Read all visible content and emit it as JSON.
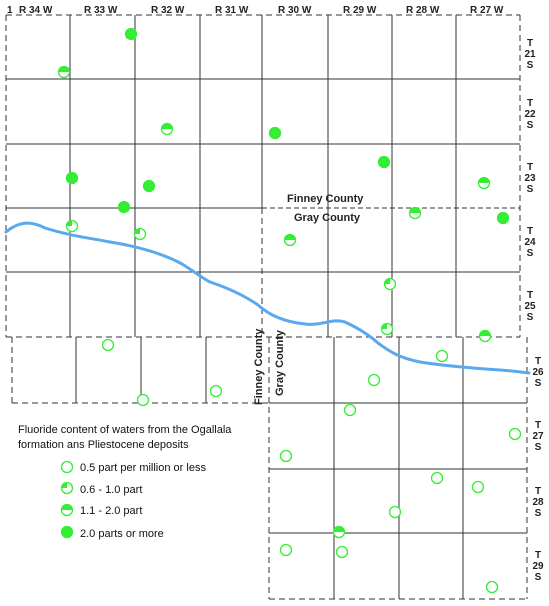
{
  "map": {
    "corner_number": "1",
    "range_labels": [
      "R 34 W",
      "R 33 W",
      "R 32 W",
      "R 31 W",
      "R 30 W",
      "R 29 W",
      "R 28 W",
      "R 27 W"
    ],
    "township_labels": [
      [
        "T",
        "21",
        "S"
      ],
      [
        "T",
        "22",
        "S"
      ],
      [
        "T",
        "23",
        "S"
      ],
      [
        "T",
        "24",
        "S"
      ],
      [
        "T",
        "25",
        "S"
      ],
      [
        "T",
        "26",
        "S"
      ],
      [
        "T",
        "27",
        "S"
      ],
      [
        "T",
        "28",
        "S"
      ],
      [
        "T",
        "29",
        "S"
      ]
    ],
    "county_labels": {
      "finney_horizontal": "Finney County",
      "gray_horizontal": "Gray County",
      "finney_vertical": "Finney County",
      "gray_vertical": "Gray County"
    },
    "colors": {
      "fill": "#33ee33",
      "river": "#5aa9ee",
      "line": "#333333"
    },
    "legend": {
      "title_line1": "Fluoride content of waters from the Ogallala",
      "title_line2": "formation ans Pliestocene deposits",
      "items": [
        {
          "level": "empty",
          "label": "0.5 part per million or less"
        },
        {
          "level": "quarter",
          "label": "0.6 - 1.0 part"
        },
        {
          "level": "half",
          "label": "1.1 - 2.0 part"
        },
        {
          "level": "full",
          "label": "2.0 parts or more"
        }
      ]
    }
  }
}
